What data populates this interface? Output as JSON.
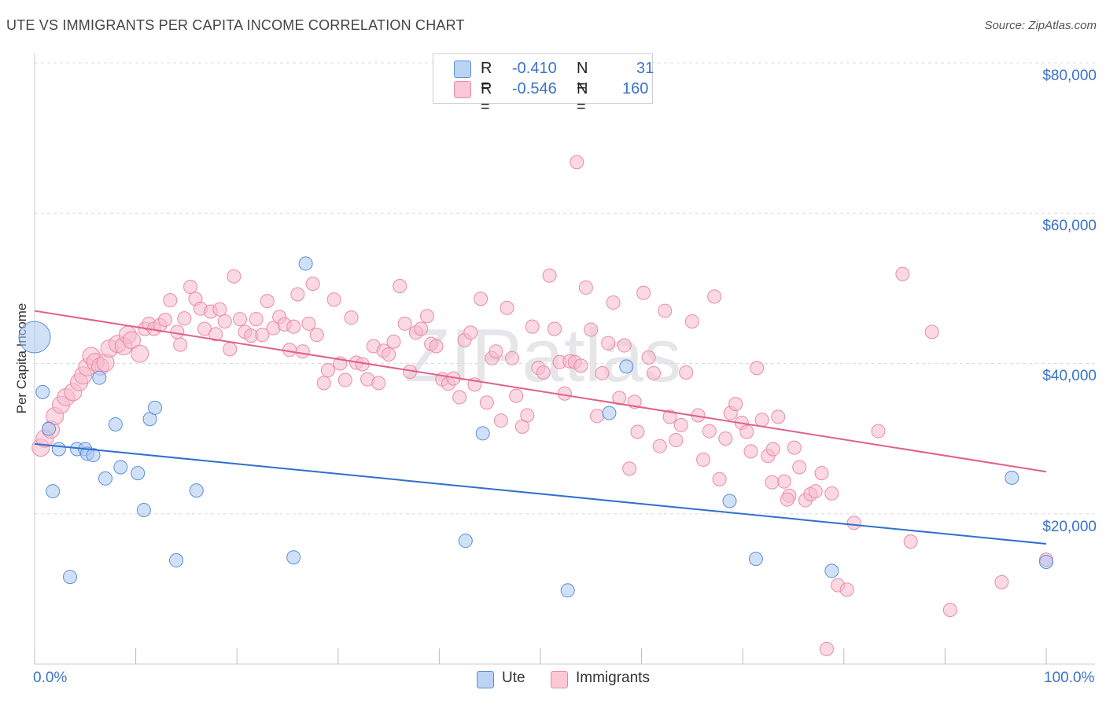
{
  "title": "UTE VS IMMIGRANTS PER CAPITA INCOME CORRELATION CHART",
  "source": "Source: ZipAtlas.com",
  "watermark": "ZIPatlas",
  "legend": {
    "items": [
      {
        "r_label": "R =",
        "r_value": "-0.410",
        "n_label": "N =",
        "n_value": "31"
      },
      {
        "r_label": "R =",
        "r_value": "-0.546",
        "n_label": "N =",
        "n_value": "160"
      }
    ]
  },
  "bottom_legend": [
    "Ute",
    "Immigrants"
  ],
  "colors": {
    "ute_fill": "#a9c8f0",
    "ute_stroke": "#5b8fd6",
    "ute_line": "#2f6fce",
    "imm_fill": "#f7b9cc",
    "imm_stroke": "#e98aa8",
    "imm_line": "#e0608a",
    "tick_text": "#3b73c8"
  },
  "chart_data": {
    "type": "scatter",
    "title": "UTE VS IMMIGRANTS PER CAPITA INCOME CORRELATION CHART",
    "xlabel": "",
    "ylabel": "Per Capita Income",
    "xlim": [
      0,
      100
    ],
    "ylim": [
      0,
      80000
    ],
    "y_ticks": [
      20000,
      40000,
      60000,
      80000
    ],
    "y_tick_labels": [
      "$20,000",
      "$40,000",
      "$60,000",
      "$80,000"
    ],
    "x_tick_labels": [
      "0.0%",
      "100.0%"
    ],
    "series": [
      {
        "name": "Ute",
        "R": -0.41,
        "N": 31,
        "trend": {
          "x0": 0,
          "y0": 29300,
          "x1": 100,
          "y1": 16000
        },
        "points": [
          [
            0,
            43500,
            3
          ],
          [
            0.8,
            36200,
            1
          ],
          [
            1.4,
            31300,
            1
          ],
          [
            1.8,
            23000,
            1
          ],
          [
            2.4,
            28600,
            1
          ],
          [
            3.5,
            11600,
            1
          ],
          [
            4.2,
            28600,
            1
          ],
          [
            5.0,
            28600,
            1
          ],
          [
            5.2,
            28000,
            1
          ],
          [
            5.8,
            27800,
            1
          ],
          [
            6.4,
            38100,
            1
          ],
          [
            7.0,
            24700,
            1
          ],
          [
            8.0,
            31900,
            1
          ],
          [
            8.5,
            26200,
            1
          ],
          [
            10.2,
            25400,
            1
          ],
          [
            10.8,
            20500,
            1
          ],
          [
            11.4,
            32600,
            1
          ],
          [
            11.9,
            34100,
            1
          ],
          [
            14.0,
            13800,
            1
          ],
          [
            16.0,
            23100,
            1
          ],
          [
            25.6,
            14200,
            1
          ],
          [
            26.8,
            53300,
            1
          ],
          [
            42.6,
            16400,
            1
          ],
          [
            44.3,
            30700,
            1
          ],
          [
            52.7,
            9800,
            1
          ],
          [
            56.8,
            33400,
            1
          ],
          [
            58.5,
            39600,
            1
          ],
          [
            68.7,
            21700,
            1
          ],
          [
            71.3,
            14000,
            1
          ],
          [
            78.8,
            12400,
            1
          ],
          [
            96.6,
            24800,
            1
          ],
          [
            100,
            13600,
            1
          ]
        ]
      },
      {
        "name": "Immigrants",
        "R": -0.546,
        "N": 160,
        "trend": {
          "x0": 0,
          "y0": 47000,
          "x1": 100,
          "y1": 25600
        },
        "points": [
          [
            0.6,
            28800,
            2
          ],
          [
            1.0,
            30000,
            2
          ],
          [
            1.6,
            31200,
            2
          ],
          [
            2.0,
            33000,
            2
          ],
          [
            2.6,
            34500,
            2
          ],
          [
            3.1,
            35500,
            2
          ],
          [
            3.8,
            36200,
            2
          ],
          [
            4.4,
            37500,
            2
          ],
          [
            4.8,
            38400,
            2
          ],
          [
            5.2,
            39500,
            2
          ],
          [
            5.6,
            41000,
            2
          ],
          [
            6.0,
            40200,
            2
          ],
          [
            6.5,
            39600,
            2
          ],
          [
            7.0,
            40100,
            2
          ],
          [
            7.4,
            42000,
            2
          ],
          [
            8.2,
            42600,
            2
          ],
          [
            8.8,
            42300,
            2
          ],
          [
            9.2,
            43800,
            2
          ],
          [
            9.6,
            43100,
            2
          ],
          [
            10.4,
            41300,
            2
          ],
          [
            10.9,
            44600,
            1
          ],
          [
            11.3,
            45300,
            1
          ],
          [
            11.8,
            44600,
            1
          ],
          [
            12.4,
            45100,
            1
          ],
          [
            12.9,
            45800,
            1
          ],
          [
            13.4,
            48400,
            1
          ],
          [
            14.1,
            44200,
            1
          ],
          [
            14.4,
            42500,
            1
          ],
          [
            14.8,
            46000,
            1
          ],
          [
            15.4,
            50200,
            1
          ],
          [
            15.9,
            48600,
            1
          ],
          [
            16.4,
            47300,
            1
          ],
          [
            16.8,
            44600,
            1
          ],
          [
            17.4,
            46900,
            1
          ],
          [
            17.9,
            43900,
            1
          ],
          [
            18.3,
            47200,
            1
          ],
          [
            18.8,
            45600,
            1
          ],
          [
            19.3,
            41900,
            1
          ],
          [
            19.7,
            51600,
            1
          ],
          [
            20.3,
            45900,
            1
          ],
          [
            20.8,
            44200,
            1
          ],
          [
            21.4,
            43700,
            1
          ],
          [
            21.9,
            45900,
            1
          ],
          [
            22.5,
            43800,
            1
          ],
          [
            23.0,
            48300,
            1
          ],
          [
            23.6,
            44700,
            1
          ],
          [
            24.2,
            46200,
            1
          ],
          [
            24.7,
            45200,
            1
          ],
          [
            25.2,
            41800,
            1
          ],
          [
            25.6,
            44900,
            1
          ],
          [
            26.0,
            49200,
            1
          ],
          [
            26.5,
            41600,
            1
          ],
          [
            27.1,
            45300,
            1
          ],
          [
            27.5,
            50600,
            1
          ],
          [
            27.9,
            43800,
            1
          ],
          [
            28.6,
            37400,
            1
          ],
          [
            29.0,
            39100,
            1
          ],
          [
            29.6,
            48500,
            1
          ],
          [
            30.2,
            40000,
            1
          ],
          [
            30.7,
            37800,
            1
          ],
          [
            31.3,
            46100,
            1
          ],
          [
            31.8,
            40100,
            1
          ],
          [
            32.4,
            39900,
            1
          ],
          [
            32.9,
            37900,
            1
          ],
          [
            33.5,
            42300,
            1
          ],
          [
            34.0,
            37400,
            1
          ],
          [
            34.5,
            41700,
            1
          ],
          [
            35.0,
            41200,
            1
          ],
          [
            35.5,
            42900,
            1
          ],
          [
            36.1,
            50300,
            1
          ],
          [
            36.6,
            45300,
            1
          ],
          [
            37.1,
            38900,
            1
          ],
          [
            37.7,
            44100,
            1
          ],
          [
            38.2,
            44600,
            1
          ],
          [
            38.8,
            46300,
            1
          ],
          [
            39.2,
            42600,
            1
          ],
          [
            39.7,
            42300,
            1
          ],
          [
            40.3,
            37900,
            1
          ],
          [
            40.9,
            37300,
            1
          ],
          [
            41.4,
            38000,
            1
          ],
          [
            42.0,
            35500,
            1
          ],
          [
            42.5,
            43100,
            1
          ],
          [
            43.1,
            44100,
            1
          ],
          [
            43.5,
            37200,
            1
          ],
          [
            44.1,
            48600,
            1
          ],
          [
            44.7,
            34800,
            1
          ],
          [
            45.2,
            40700,
            1
          ],
          [
            45.6,
            41600,
            1
          ],
          [
            46.1,
            32400,
            1
          ],
          [
            46.7,
            47400,
            1
          ],
          [
            47.2,
            40700,
            1
          ],
          [
            47.6,
            35700,
            1
          ],
          [
            48.2,
            31600,
            1
          ],
          [
            48.7,
            33100,
            1
          ],
          [
            49.2,
            44900,
            1
          ],
          [
            49.8,
            39400,
            1
          ],
          [
            50.3,
            38800,
            1
          ],
          [
            50.9,
            51700,
            1
          ],
          [
            51.4,
            44600,
            1
          ],
          [
            51.9,
            40200,
            1
          ],
          [
            52.4,
            36000,
            1
          ],
          [
            52.9,
            40300,
            1
          ],
          [
            53.4,
            40200,
            1
          ],
          [
            54.0,
            39700,
            1
          ],
          [
            54.5,
            50100,
            1
          ],
          [
            55.0,
            44500,
            1
          ],
          [
            55.6,
            33000,
            1
          ],
          [
            56.1,
            38700,
            1
          ],
          [
            56.7,
            42700,
            1
          ],
          [
            57.2,
            48100,
            1
          ],
          [
            57.8,
            35400,
            1
          ],
          [
            58.3,
            42400,
            1
          ],
          [
            58.8,
            26000,
            1
          ],
          [
            59.3,
            34900,
            1
          ],
          [
            59.6,
            30900,
            1
          ],
          [
            60.2,
            49400,
            1
          ],
          [
            60.7,
            40800,
            1
          ],
          [
            61.2,
            38700,
            1
          ],
          [
            61.8,
            29000,
            1
          ],
          [
            62.3,
            47000,
            1
          ],
          [
            62.8,
            32900,
            1
          ],
          [
            63.4,
            29800,
            1
          ],
          [
            63.9,
            31800,
            1
          ],
          [
            64.4,
            38800,
            1
          ],
          [
            65.0,
            45600,
            1
          ],
          [
            65.6,
            33100,
            1
          ],
          [
            66.1,
            27200,
            1
          ],
          [
            66.7,
            31000,
            1
          ],
          [
            67.2,
            48900,
            1
          ],
          [
            67.7,
            24600,
            1
          ],
          [
            68.3,
            30000,
            1
          ],
          [
            68.8,
            33400,
            1
          ],
          [
            69.3,
            34600,
            1
          ],
          [
            69.9,
            32100,
            1
          ],
          [
            70.4,
            30900,
            1
          ],
          [
            70.8,
            28300,
            1
          ],
          [
            71.4,
            39400,
            1
          ],
          [
            71.9,
            32500,
            1
          ],
          [
            72.5,
            27700,
            1
          ],
          [
            73.0,
            28600,
            1
          ],
          [
            73.5,
            32900,
            1
          ],
          [
            74.1,
            24300,
            1
          ],
          [
            74.6,
            22400,
            1
          ],
          [
            75.1,
            28800,
            1
          ],
          [
            75.6,
            26200,
            1
          ],
          [
            76.2,
            21800,
            1
          ],
          [
            76.7,
            22600,
            1
          ],
          [
            77.2,
            23000,
            1
          ],
          [
            77.8,
            25400,
            1
          ],
          [
            78.3,
            2000,
            1
          ],
          [
            78.8,
            22700,
            1
          ],
          [
            79.4,
            10500,
            1
          ],
          [
            80.3,
            9900,
            1
          ],
          [
            81.0,
            18800,
            1
          ],
          [
            83.4,
            31000,
            1
          ],
          [
            85.8,
            51900,
            1
          ],
          [
            86.6,
            16300,
            1
          ],
          [
            88.7,
            44200,
            1
          ],
          [
            90.5,
            7200,
            1
          ],
          [
            95.6,
            10900,
            1
          ],
          [
            100,
            13900,
            1
          ],
          [
            53.6,
            66800,
            1
          ],
          [
            74.4,
            21900,
            1
          ],
          [
            72.9,
            24200,
            1
          ]
        ]
      }
    ]
  }
}
